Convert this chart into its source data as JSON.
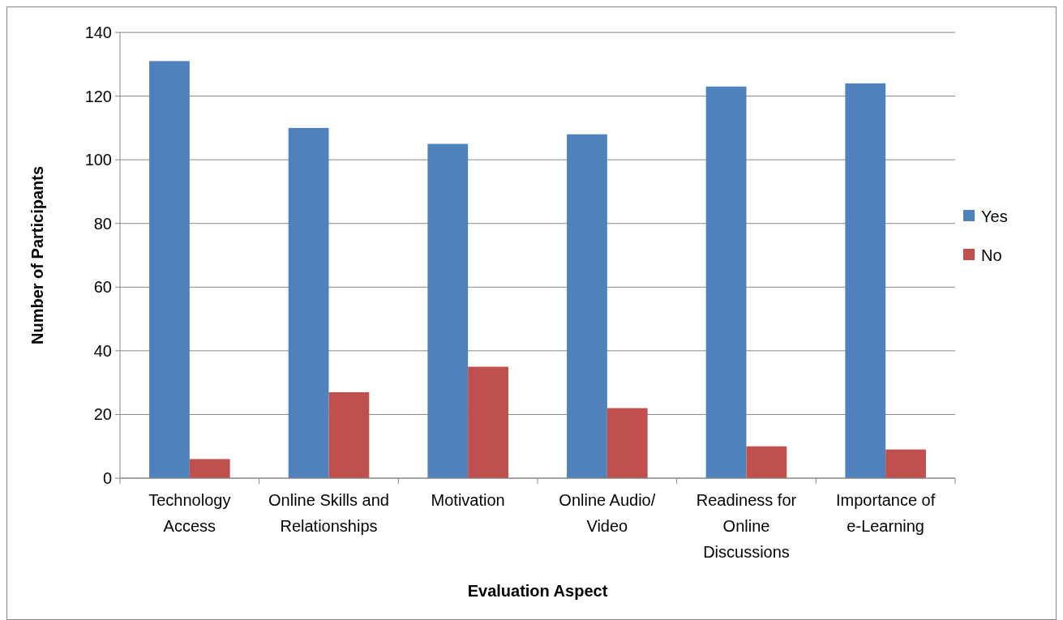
{
  "chart_data": {
    "type": "bar",
    "xlabel": "Evaluation Aspect",
    "ylabel": "Number of Participants",
    "categories": [
      "Technology Access",
      "Online Skills and Relationships",
      "Motivation",
      "Online Audio/ Video",
      "Readiness for Online Discussions",
      "Importance of e-Learning"
    ],
    "series": [
      {
        "name": "Yes",
        "color": "#4f81bd",
        "values": [
          131,
          110,
          105,
          108,
          123,
          124
        ]
      },
      {
        "name": "No",
        "color": "#c0504d",
        "values": [
          6,
          27,
          35,
          22,
          10,
          9
        ]
      }
    ],
    "ylim": [
      0,
      140
    ],
    "yticks": [
      0,
      20,
      40,
      60,
      80,
      100,
      120,
      140
    ],
    "grid": "y",
    "legend": "right"
  }
}
